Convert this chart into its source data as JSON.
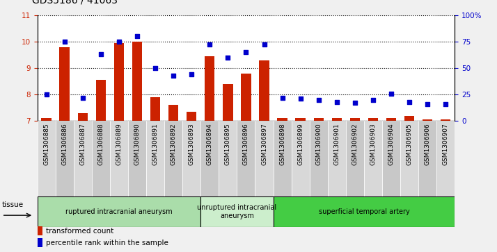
{
  "title": "GDS5186 / 41063",
  "samples": [
    "GSM1306885",
    "GSM1306886",
    "GSM1306887",
    "GSM1306888",
    "GSM1306889",
    "GSM1306890",
    "GSM1306891",
    "GSM1306892",
    "GSM1306893",
    "GSM1306894",
    "GSM1306895",
    "GSM1306896",
    "GSM1306897",
    "GSM1306898",
    "GSM1306899",
    "GSM1306900",
    "GSM1306901",
    "GSM1306902",
    "GSM1306903",
    "GSM1306904",
    "GSM1306905",
    "GSM1306906",
    "GSM1306907"
  ],
  "transformed_count": [
    7.1,
    9.8,
    7.3,
    8.55,
    9.95,
    10.0,
    7.9,
    7.6,
    7.35,
    9.45,
    8.4,
    8.8,
    9.3,
    7.1,
    7.1,
    7.1,
    7.1,
    7.1,
    7.1,
    7.1,
    7.2,
    7.05,
    7.05
  ],
  "percentile_rank": [
    25,
    75,
    22,
    63,
    75,
    80,
    50,
    43,
    44,
    72,
    60,
    65,
    72,
    22,
    21,
    20,
    18,
    17,
    20,
    26,
    18,
    16,
    16
  ],
  "groups": [
    {
      "label": "ruptured intracranial aneurysm",
      "start": 0,
      "end": 8,
      "color": "#aaddaa"
    },
    {
      "label": "unruptured intracranial\naneurysm",
      "start": 9,
      "end": 12,
      "color": "#cceecc"
    },
    {
      "label": "superficial temporal artery",
      "start": 13,
      "end": 22,
      "color": "#44cc44"
    }
  ],
  "ylim_left": [
    7,
    11
  ],
  "ylim_right": [
    0,
    100
  ],
  "yticks_left": [
    7,
    8,
    9,
    10,
    11
  ],
  "yticks_right": [
    0,
    25,
    50,
    75,
    100
  ],
  "bar_color": "#cc2200",
  "dot_color": "#0000cc",
  "fig_bg": "#f0f0f0",
  "plot_bg": "#ffffff",
  "title_fontsize": 10,
  "tick_fontsize": 6.5,
  "legend_label_bar": "transformed count",
  "legend_label_dot": "percentile rank within the sample",
  "tissue_label": "tissue",
  "left_axis_color": "#cc2200",
  "right_axis_color": "#0000cc",
  "col_bg_even": "#d8d8d8",
  "col_bg_odd": "#c8c8c8"
}
